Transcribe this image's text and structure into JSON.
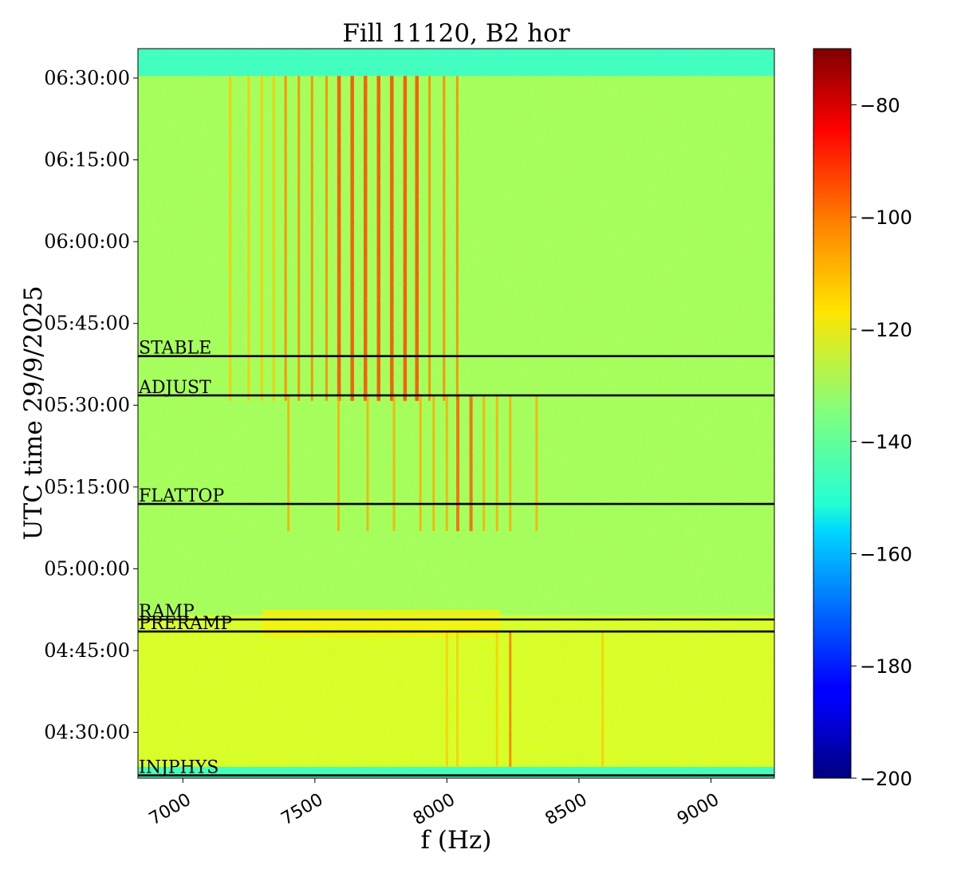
{
  "chart_data": {
    "type": "heatmap",
    "title": "Fill 11120, B2 hor",
    "xlabel": "f (Hz)",
    "ylabel": "UTC time 29/9/2025",
    "xlim": [
      6830,
      9240
    ],
    "x_ticks": [
      7000,
      7500,
      8000,
      8500,
      9000
    ],
    "ylim_minutes": [
      261.6,
      395.4
    ],
    "y_ticks": [
      {
        "minutes": 270,
        "label": "04:30:00"
      },
      {
        "minutes": 285,
        "label": "04:45:00"
      },
      {
        "minutes": 300,
        "label": "05:00:00"
      },
      {
        "minutes": 315,
        "label": "05:15:00"
      },
      {
        "minutes": 330,
        "label": "05:30:00"
      },
      {
        "minutes": 345,
        "label": "05:45:00"
      },
      {
        "minutes": 360,
        "label": "06:00:00"
      },
      {
        "minutes": 375,
        "label": "06:15:00"
      },
      {
        "minutes": 390,
        "label": "06:30:00"
      }
    ],
    "colorbar": {
      "colormap": "jet",
      "range": [
        -200,
        -70
      ],
      "ticks": [
        -200,
        -180,
        -160,
        -140,
        -120,
        -100,
        -80
      ]
    },
    "background_level_db": -130,
    "beam_modes": [
      {
        "label": "INJPHYS",
        "minutes": 262.1
      },
      {
        "label": "PRERAMP",
        "minutes": 288.5
      },
      {
        "label": "RAMP",
        "minutes": 290.7
      },
      {
        "label": "FLATTOP",
        "minutes": 311.9
      },
      {
        "label": "ADJUST",
        "minutes": 331.8
      },
      {
        "label": "STABLE",
        "minutes": 339.0
      }
    ],
    "data_gaps_minutes": [
      [
        261.6,
        263.7
      ],
      [
        390.4,
        395.4
      ]
    ],
    "spectral_lines_stable": [
      7180,
      7250,
      7300,
      7345,
      7390,
      7440,
      7490,
      7545,
      7590,
      7640,
      7690,
      7740,
      7790,
      7840,
      7885,
      7935,
      7990,
      8040
    ],
    "spectral_lines_ramp": [
      7400,
      7590,
      7700,
      7800,
      7900,
      7950,
      8000,
      8040,
      8090,
      8140,
      8190,
      8240,
      8340
    ],
    "spectral_lines_injection": [
      8000,
      8040,
      8190,
      8240,
      8590
    ]
  }
}
